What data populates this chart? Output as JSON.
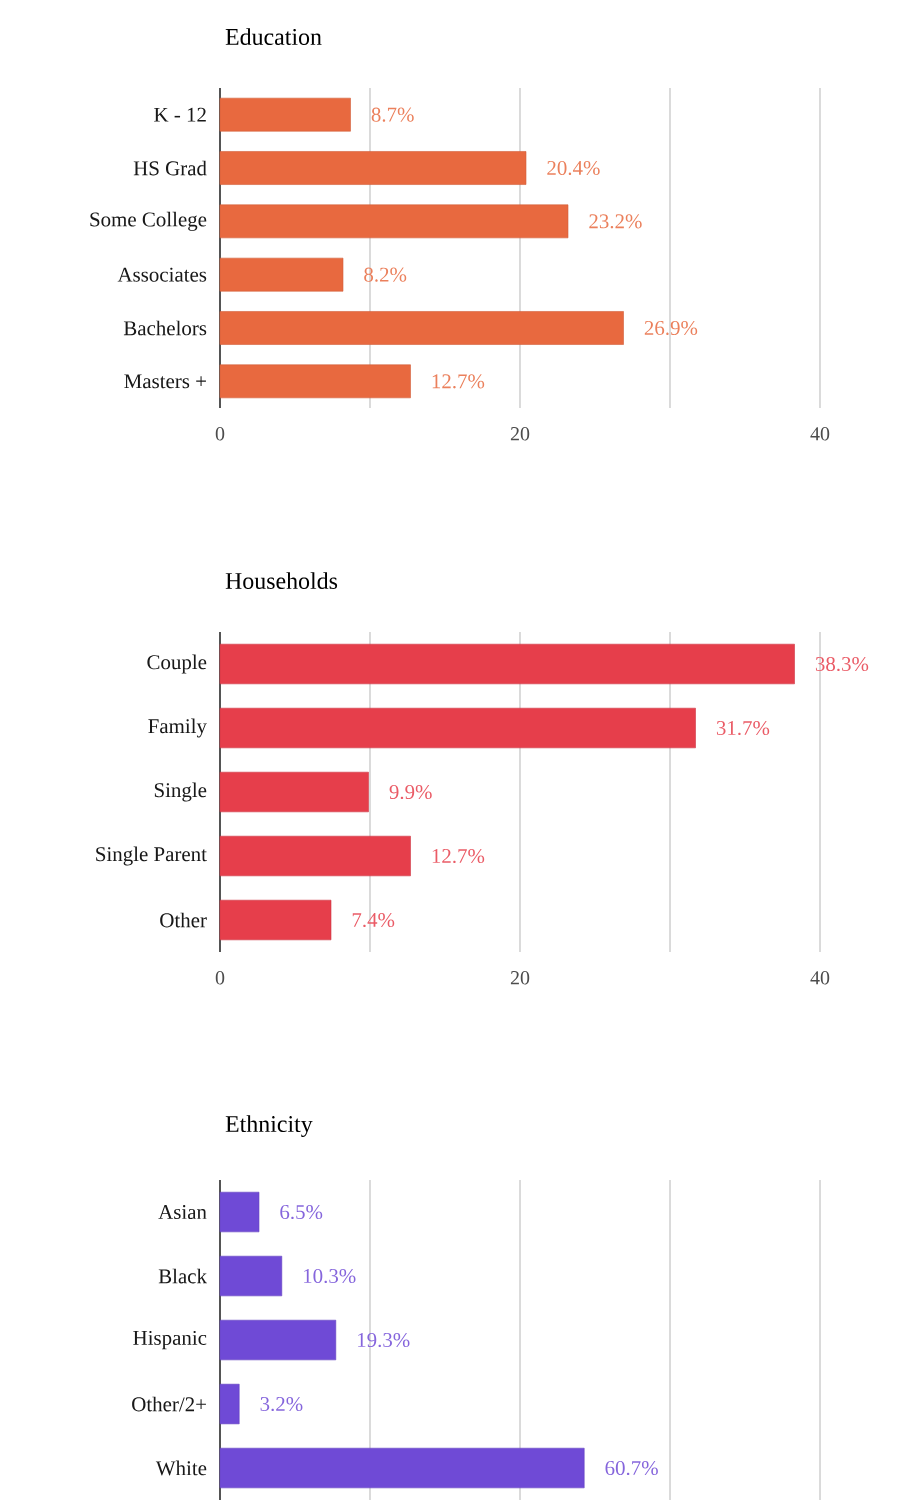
{
  "chart_data": [
    {
      "type": "bar",
      "orientation": "horizontal",
      "title": "Education",
      "categories": [
        "K - 12",
        "HS Grad",
        "Some College",
        "Associates",
        "Bachelors",
        "Masters +"
      ],
      "values": [
        8.7,
        20.4,
        23.2,
        8.2,
        26.9,
        12.7
      ],
      "value_labels": [
        "8.7%",
        "20.4%",
        "23.2%",
        "8.2%",
        "26.9%",
        "12.7%"
      ],
      "color": "#e8693f",
      "xlim": [
        0,
        40
      ],
      "xticks": [
        0,
        {
          "value": 10,
          "label": null
        },
        20,
        {
          "value": 30,
          "label": null
        },
        40
      ],
      "grid": "x"
    },
    {
      "type": "bar",
      "orientation": "horizontal",
      "title": "Households",
      "categories": [
        "Couple",
        "Family",
        "Single",
        "Single Parent",
        "Other"
      ],
      "values": [
        38.3,
        31.7,
        9.9,
        12.7,
        7.4
      ],
      "value_labels": [
        "38.3%",
        "31.7%",
        "9.9%",
        "12.7%",
        "7.4%"
      ],
      "color": "#e63e4b",
      "xlim": [
        0,
        40
      ],
      "xticks": [
        0,
        {
          "value": 10,
          "label": null
        },
        20,
        {
          "value": 30,
          "label": null
        },
        40
      ],
      "grid": "x"
    },
    {
      "type": "bar",
      "orientation": "horizontal",
      "title": "Ethnicity",
      "categories": [
        "Asian",
        "Black",
        "Hispanic",
        "Other/2+",
        "White"
      ],
      "values": [
        6.5,
        10.3,
        19.3,
        3.2,
        60.7
      ],
      "value_labels": [
        "6.5%",
        "10.3%",
        "19.3%",
        "3.2%",
        "60.7%"
      ],
      "color": "#6f4ad6",
      "xlim": [
        0,
        100
      ],
      "xticks": [
        {
          "value": 0,
          "label": null
        },
        {
          "value": 25,
          "label": null
        },
        {
          "value": 50,
          "label": null
        },
        {
          "value": 75,
          "label": null
        },
        {
          "value": 100,
          "label": null
        }
      ],
      "grid": "x",
      "tick_labels": "y"
    }
  ]
}
